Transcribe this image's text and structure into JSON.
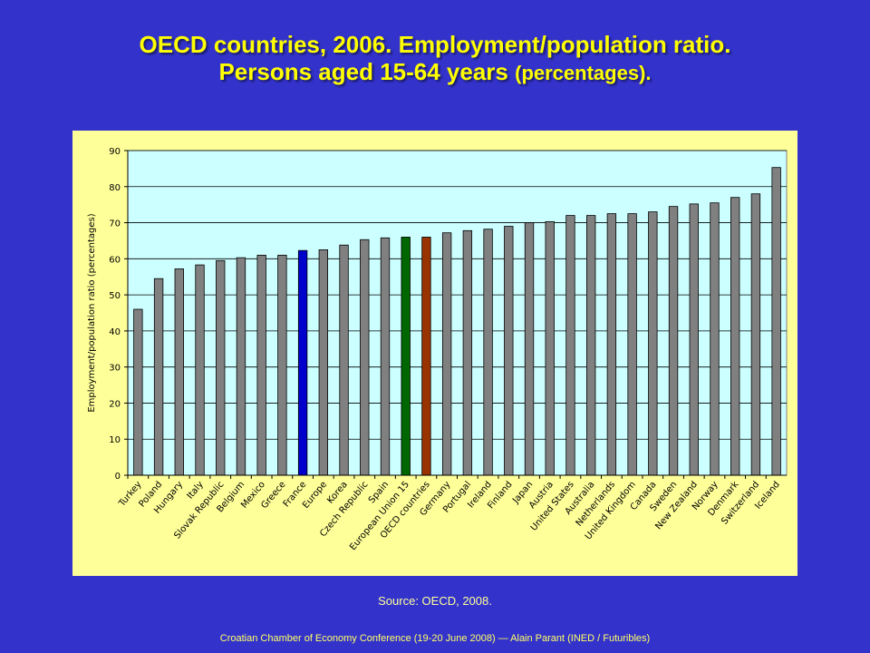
{
  "slide": {
    "title_line1": "OECD countries, 2006. Employment/population ratio.",
    "title_line2": "Persons aged  15-64 years",
    "title_line2_small": "(percentages).",
    "source": "Source: OECD, 2008.",
    "footer": "Croatian Chamber of Economy Conference (19-20 June 2008) — Alain Parant (INED / Futuribles)"
  },
  "colors": {
    "background": "#3333cc",
    "title": "#ffff00",
    "panel": "#ffff99",
    "plot_area": "#ccffff",
    "bar_default": "#808080",
    "bar_france": "#0000cc",
    "bar_eu15": "#006600",
    "bar_oecd": "#993300"
  },
  "chart_data": {
    "type": "bar",
    "title": "",
    "xlabel": "",
    "ylabel": "Employment/population ratio (percentages)",
    "ylim": [
      0,
      90
    ],
    "yticks": [
      0,
      10,
      20,
      30,
      40,
      50,
      60,
      70,
      80,
      90
    ],
    "grid": "horizontal",
    "categories": [
      "Turkey",
      "Poland",
      "Hungary",
      "Italy",
      "Slovak Republic",
      "Belgium",
      "Mexico",
      "Greece",
      "France",
      "Europe",
      "Korea",
      "Czech Republic",
      "Spain",
      "European Union 15",
      "OECD countries",
      "Germany",
      "Portugal",
      "Ireland",
      "Finland",
      "Japan",
      "Austria",
      "United States",
      "Australia",
      "Netherlands",
      "United Kingdom",
      "Canada",
      "Sweden",
      "New Zealand",
      "Norway",
      "Denmark",
      "Switzerland",
      "Iceland"
    ],
    "values": [
      46,
      54.5,
      57.2,
      58.3,
      59.5,
      60.3,
      61,
      61,
      62.3,
      62.5,
      63.8,
      65.3,
      65.8,
      66,
      66,
      67.2,
      67.8,
      68.2,
      69,
      70,
      70.3,
      72,
      72,
      72.5,
      72.5,
      73,
      74.5,
      75.2,
      75.5,
      77,
      78,
      85.3
    ],
    "bar_colors": [
      "#808080",
      "#808080",
      "#808080",
      "#808080",
      "#808080",
      "#808080",
      "#808080",
      "#808080",
      "#0000cc",
      "#808080",
      "#808080",
      "#808080",
      "#808080",
      "#006600",
      "#993300",
      "#808080",
      "#808080",
      "#808080",
      "#808080",
      "#808080",
      "#808080",
      "#808080",
      "#808080",
      "#808080",
      "#808080",
      "#808080",
      "#808080",
      "#808080",
      "#808080",
      "#808080",
      "#808080",
      "#808080"
    ]
  }
}
